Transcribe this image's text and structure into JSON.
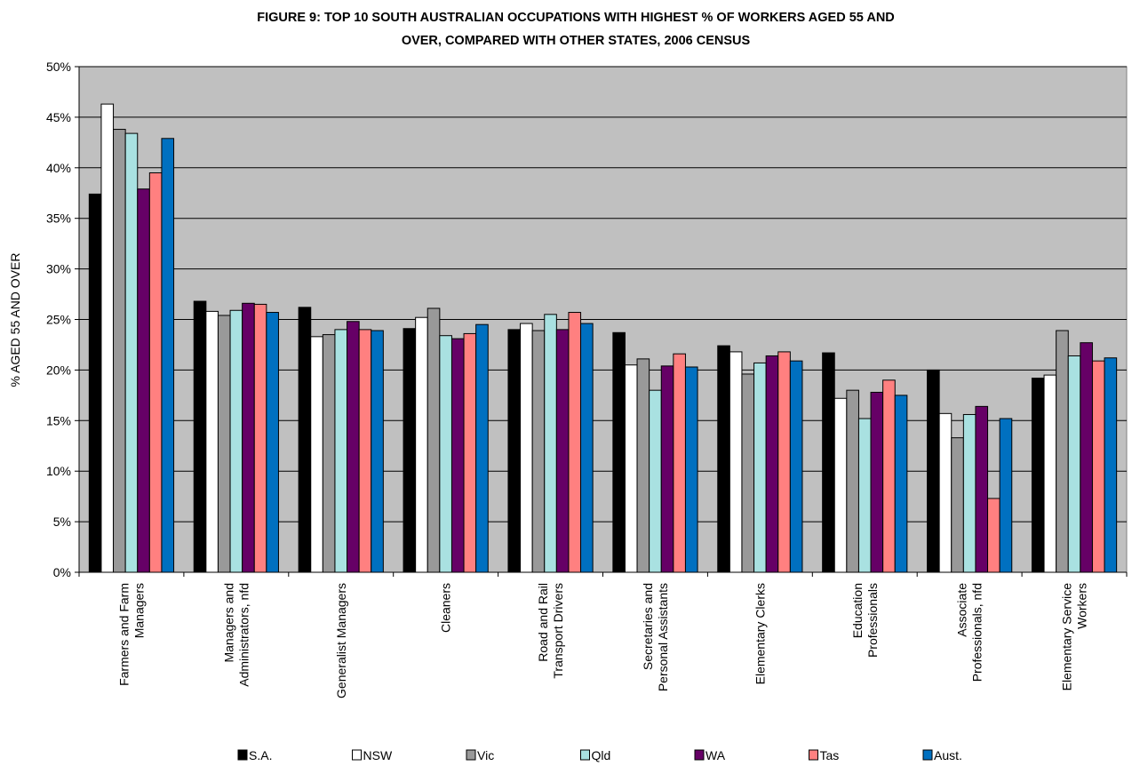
{
  "chart_data": {
    "type": "bar",
    "title_lines": [
      "FIGURE 9: TOP 10 SOUTH AUSTRALIAN OCCUPATIONS WITH HIGHEST % OF WORKERS AGED 55 AND",
      "OVER, COMPARED WITH OTHER STATES, 2006 CENSUS"
    ],
    "xlabel": "",
    "ylabel": "% AGED 55 AND OVER",
    "ylim": [
      0,
      50
    ],
    "y_ticks": [
      "0%",
      "5%",
      "10%",
      "15%",
      "20%",
      "25%",
      "30%",
      "35%",
      "40%",
      "45%",
      "50%"
    ],
    "y_tick_values": [
      0,
      5,
      10,
      15,
      20,
      25,
      30,
      35,
      40,
      45,
      50
    ],
    "grid": true,
    "plot_background": "#c0c0c0",
    "legend_position": "bottom",
    "categories": [
      [
        "Farmers and Farm",
        "Managers"
      ],
      [
        "Managers and",
        "Administrators, nfd"
      ],
      [
        "Generalist Managers"
      ],
      [
        "Cleaners"
      ],
      [
        "Road and Rail",
        "Transport Drivers"
      ],
      [
        "Secretaries and",
        "Personal Assistants"
      ],
      [
        "Elementary Clerks"
      ],
      [
        "Education",
        "Professionals"
      ],
      [
        "Associate",
        "Professionals, nfd"
      ],
      [
        "Elementary Service",
        "Workers"
      ]
    ],
    "series": [
      {
        "name": "S.A.",
        "color": "#000000",
        "values": [
          37.4,
          26.8,
          26.2,
          24.1,
          24.0,
          23.7,
          22.4,
          21.7,
          20.0,
          19.2
        ]
      },
      {
        "name": "NSW",
        "color": "#ffffff",
        "values": [
          46.3,
          25.8,
          23.3,
          25.2,
          24.6,
          20.5,
          21.8,
          17.2,
          15.7,
          19.5
        ]
      },
      {
        "name": "Vic",
        "color": "#999999",
        "values": [
          43.8,
          25.4,
          23.5,
          26.1,
          23.9,
          21.1,
          19.6,
          18.0,
          13.3,
          23.9
        ]
      },
      {
        "name": "Qld",
        "color": "#a9e1e1",
        "values": [
          43.4,
          25.9,
          24.0,
          23.4,
          25.5,
          18.0,
          20.7,
          15.2,
          15.6,
          21.4
        ]
      },
      {
        "name": "WA",
        "color": "#660066",
        "values": [
          37.9,
          26.6,
          24.8,
          23.1,
          24.0,
          20.4,
          21.4,
          17.8,
          16.4,
          22.7
        ]
      },
      {
        "name": "Tas",
        "color": "#ff8080",
        "values": [
          39.5,
          26.5,
          24.0,
          23.6,
          25.7,
          21.6,
          21.8,
          19.0,
          7.3,
          20.9
        ]
      },
      {
        "name": "Aust.",
        "color": "#0070c0",
        "values": [
          42.9,
          25.7,
          23.9,
          24.5,
          24.6,
          20.3,
          20.9,
          17.5,
          15.2,
          21.2
        ]
      }
    ]
  }
}
